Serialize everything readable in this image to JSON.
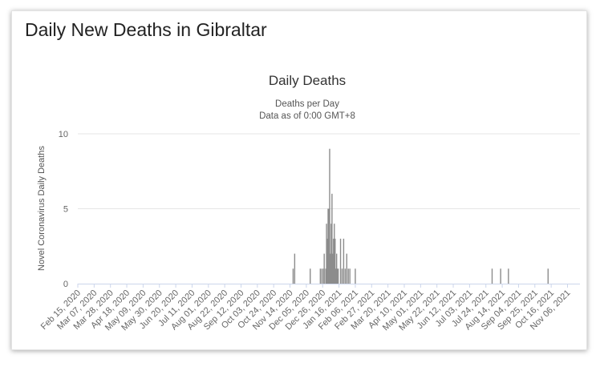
{
  "page": {
    "card_title": "Daily New Deaths in Gibraltar"
  },
  "chart_data": {
    "type": "bar",
    "title": "Daily Deaths",
    "subtitle_lines": [
      "Deaths per Day",
      "Data as of 0:00 GMT+8"
    ],
    "ylabel": "Novel Coronavirus Daily Deaths",
    "xlabel": "",
    "ylim": [
      0,
      10
    ],
    "yticks": [
      0,
      5,
      10
    ],
    "x_start": "Feb 15, 2020",
    "x_end": "Nov 22, 2021",
    "x_tick_labels": [
      "Feb 15, 2020",
      "Mar 07, 2020",
      "Mar 28, 2020",
      "Apr 18, 2020",
      "May 09, 2020",
      "May 30, 2020",
      "Jun 20, 2020",
      "Jul 11, 2020",
      "Aug 01, 2020",
      "Aug 22, 2020",
      "Sep 12, 2020",
      "Oct 03, 2020",
      "Oct 24, 2020",
      "Nov 14, 2020",
      "Dec 05, 2020",
      "Dec 26, 2020",
      "Jan 16, 2021",
      "Feb 06, 2021",
      "Feb 27, 2021",
      "Mar 20, 2021",
      "Apr 10, 2021",
      "May 01, 2021",
      "May 22, 2021",
      "Jun 12, 2021",
      "Jul 03, 2021",
      "Jul 24, 2021",
      "Aug 14, 2021",
      "Sep 04, 2021",
      "Sep 25, 2021",
      "Oct 16, 2021",
      "Nov 06, 2021"
    ],
    "grid": true,
    "legend": "none",
    "bar_color": "#8c8c8c",
    "points": [
      {
        "date": "Nov 18, 2020",
        "value": 1
      },
      {
        "date": "Nov 20, 2020",
        "value": 2
      },
      {
        "date": "Dec 10, 2020",
        "value": 1
      },
      {
        "date": "Dec 23, 2020",
        "value": 1
      },
      {
        "date": "Dec 25, 2020",
        "value": 1
      },
      {
        "date": "Dec 27, 2020",
        "value": 1
      },
      {
        "date": "Dec 28, 2020",
        "value": 2
      },
      {
        "date": "Dec 30, 2020",
        "value": 1
      },
      {
        "date": "Dec 31, 2020",
        "value": 4
      },
      {
        "date": "Jan 01, 2021",
        "value": 3
      },
      {
        "date": "Jan 02, 2021",
        "value": 5
      },
      {
        "date": "Jan 03, 2021",
        "value": 5
      },
      {
        "date": "Jan 04, 2021",
        "value": 9
      },
      {
        "date": "Jan 05, 2021",
        "value": 2
      },
      {
        "date": "Jan 06, 2021",
        "value": 4
      },
      {
        "date": "Jan 07, 2021",
        "value": 6
      },
      {
        "date": "Jan 08, 2021",
        "value": 2
      },
      {
        "date": "Jan 09, 2021",
        "value": 3
      },
      {
        "date": "Jan 10, 2021",
        "value": 4
      },
      {
        "date": "Jan 11, 2021",
        "value": 3
      },
      {
        "date": "Jan 12, 2021",
        "value": 1
      },
      {
        "date": "Jan 13, 2021",
        "value": 2
      },
      {
        "date": "Jan 14, 2021",
        "value": 1
      },
      {
        "date": "Jan 15, 2021",
        "value": 1
      },
      {
        "date": "Jan 18, 2021",
        "value": 3
      },
      {
        "date": "Jan 20, 2021",
        "value": 1
      },
      {
        "date": "Jan 22, 2021",
        "value": 3
      },
      {
        "date": "Jan 24, 2021",
        "value": 1
      },
      {
        "date": "Jan 26, 2021",
        "value": 2
      },
      {
        "date": "Jan 28, 2021",
        "value": 1
      },
      {
        "date": "Jan 30, 2021",
        "value": 1
      },
      {
        "date": "Feb 06, 2021",
        "value": 1
      },
      {
        "date": "Aug 01, 2021",
        "value": 1
      },
      {
        "date": "Aug 12, 2021",
        "value": 1
      },
      {
        "date": "Aug 22, 2021",
        "value": 1
      },
      {
        "date": "Oct 12, 2021",
        "value": 1
      }
    ]
  }
}
